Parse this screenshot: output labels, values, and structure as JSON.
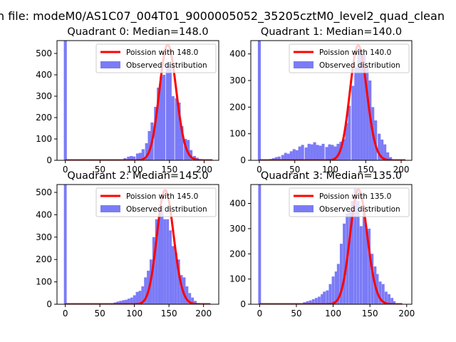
{
  "figure_title": "n file: modeM0/AS1C07_004T01_9000005052_35205cztM0_level2_quad_clean",
  "colors": {
    "histogram": "#7b7bf7",
    "poisson": "#ff0000",
    "axis": "#000000"
  },
  "chart_data": [
    {
      "type": "bar+line",
      "quadrant": 0,
      "title": "Quadrant 0: Median=148.0",
      "median": 148.0,
      "xlim": [
        -12,
        221
      ],
      "ylim": [
        0,
        560
      ],
      "xticks": [
        0,
        50,
        100,
        150,
        200
      ],
      "yticks": [
        0,
        100,
        200,
        300,
        400,
        500
      ],
      "bin_width": 4.3,
      "zero_bin": {
        "x": 0,
        "count": 560
      },
      "bins": [
        [
          86,
          10
        ],
        [
          91,
          17
        ],
        [
          95,
          20
        ],
        [
          99,
          18
        ],
        [
          104,
          32
        ],
        [
          108,
          35
        ],
        [
          112,
          52
        ],
        [
          117,
          80
        ],
        [
          121,
          137
        ],
        [
          125,
          177
        ],
        [
          130,
          250
        ],
        [
          134,
          340
        ],
        [
          138,
          390
        ],
        [
          142,
          400
        ],
        [
          147,
          460
        ],
        [
          151,
          440
        ],
        [
          155,
          300
        ],
        [
          160,
          290
        ],
        [
          164,
          270
        ],
        [
          168,
          160
        ],
        [
          173,
          100
        ],
        [
          177,
          95
        ],
        [
          181,
          48
        ],
        [
          186,
          20
        ],
        [
          190,
          12
        ]
      ],
      "poisson": {
        "mean": 148.0,
        "peak": 540,
        "range": [
          0,
          212
        ]
      },
      "legend": {
        "line_label": "Poission with 148.0",
        "hist_label": "Observed distribution",
        "position": "upper right"
      }
    },
    {
      "type": "bar+line",
      "quadrant": 1,
      "title": "Quadrant 1: Median=140.0",
      "median": 140.0,
      "xlim": [
        -12,
        215
      ],
      "ylim": [
        0,
        450
      ],
      "xticks": [
        0,
        50,
        100,
        150,
        200
      ],
      "yticks": [
        0,
        100,
        200,
        300,
        400
      ],
      "bin_width": 4.1,
      "zero_bin": {
        "x": 0,
        "count": 450
      },
      "bins": [
        [
          16,
          5
        ],
        [
          20,
          8
        ],
        [
          24,
          12
        ],
        [
          28,
          14
        ],
        [
          33,
          20
        ],
        [
          37,
          28
        ],
        [
          41,
          25
        ],
        [
          45,
          34
        ],
        [
          49,
          42
        ],
        [
          53,
          38
        ],
        [
          57,
          52
        ],
        [
          61,
          58
        ],
        [
          66,
          48
        ],
        [
          70,
          62
        ],
        [
          74,
          60
        ],
        [
          78,
          68
        ],
        [
          82,
          58
        ],
        [
          86,
          55
        ],
        [
          90,
          62
        ],
        [
          95,
          50
        ],
        [
          99,
          60
        ],
        [
          103,
          58
        ],
        [
          107,
          52
        ],
        [
          111,
          62
        ],
        [
          115,
          70
        ],
        [
          119,
          80
        ],
        [
          123,
          140
        ],
        [
          127,
          205
        ],
        [
          132,
          280
        ],
        [
          136,
          350
        ],
        [
          140,
          420
        ],
        [
          144,
          410
        ],
        [
          148,
          400
        ],
        [
          152,
          350
        ],
        [
          156,
          300
        ],
        [
          160,
          200
        ],
        [
          164,
          150
        ],
        [
          169,
          100
        ],
        [
          173,
          78
        ],
        [
          177,
          60
        ],
        [
          181,
          30
        ],
        [
          185,
          12
        ]
      ],
      "poisson": {
        "mean": 140.0,
        "peak": 432,
        "range": [
          0,
          206
        ]
      },
      "legend": {
        "line_label": "Poission with 140.0",
        "hist_label": "Observed distribution",
        "position": "upper right"
      }
    },
    {
      "type": "bar+line",
      "quadrant": 2,
      "title": "Quadrant 2: Median=145.0",
      "median": 145.0,
      "xlim": [
        -12,
        222
      ],
      "ylim": [
        0,
        535
      ],
      "xticks": [
        0,
        50,
        100,
        150,
        200
      ],
      "yticks": [
        0,
        100,
        200,
        300,
        400,
        500
      ],
      "bin_width": 4.0,
      "zero_bin": {
        "x": 0,
        "count": 535
      },
      "bins": [
        [
          72,
          8
        ],
        [
          76,
          12
        ],
        [
          80,
          15
        ],
        [
          84,
          18
        ],
        [
          88,
          20
        ],
        [
          92,
          25
        ],
        [
          96,
          30
        ],
        [
          100,
          40
        ],
        [
          104,
          55
        ],
        [
          108,
          60
        ],
        [
          112,
          80
        ],
        [
          116,
          120
        ],
        [
          120,
          150
        ],
        [
          124,
          200
        ],
        [
          128,
          300
        ],
        [
          132,
          380
        ],
        [
          136,
          400
        ],
        [
          140,
          440
        ],
        [
          144,
          380
        ],
        [
          148,
          380
        ],
        [
          152,
          330
        ],
        [
          156,
          260
        ],
        [
          160,
          230
        ],
        [
          164,
          200
        ],
        [
          168,
          130
        ],
        [
          172,
          120
        ],
        [
          176,
          80
        ],
        [
          180,
          50
        ],
        [
          184,
          30
        ],
        [
          188,
          15
        ]
      ],
      "poisson": {
        "mean": 145.0,
        "peak": 510,
        "range": [
          0,
          210
        ]
      },
      "legend": {
        "line_label": "Poission with 145.0",
        "hist_label": "Observed distribution",
        "position": "upper right"
      }
    },
    {
      "type": "bar+line",
      "quadrant": 3,
      "title": "Quadrant 3: Median=135.0",
      "median": 135.0,
      "xlim": [
        -12,
        207
      ],
      "ylim": [
        0,
        475
      ],
      "xticks": [
        0,
        50,
        100,
        150,
        200
      ],
      "yticks": [
        0,
        100,
        200,
        300,
        400
      ],
      "bin_width": 3.8,
      "zero_bin": {
        "x": 0,
        "count": 475
      },
      "bins": [
        [
          61,
          8
        ],
        [
          65,
          12
        ],
        [
          69,
          15
        ],
        [
          73,
          20
        ],
        [
          77,
          25
        ],
        [
          81,
          30
        ],
        [
          85,
          40
        ],
        [
          88,
          50
        ],
        [
          92,
          55
        ],
        [
          96,
          80
        ],
        [
          100,
          110
        ],
        [
          104,
          130
        ],
        [
          107,
          160
        ],
        [
          111,
          240
        ],
        [
          115,
          320
        ],
        [
          119,
          360
        ],
        [
          123,
          370
        ],
        [
          126,
          410
        ],
        [
          130,
          460
        ],
        [
          134,
          410
        ],
        [
          138,
          310
        ],
        [
          142,
          390
        ],
        [
          145,
          300
        ],
        [
          149,
          300
        ],
        [
          153,
          200
        ],
        [
          157,
          150
        ],
        [
          160,
          120
        ],
        [
          164,
          90
        ],
        [
          168,
          80
        ],
        [
          172,
          50
        ],
        [
          176,
          40
        ],
        [
          180,
          25
        ],
        [
          183,
          12
        ]
      ],
      "poisson": {
        "mean": 135.0,
        "peak": 455,
        "range": [
          0,
          194
        ]
      },
      "legend": {
        "line_label": "Poission with 135.0",
        "hist_label": "Observed distribution",
        "position": "upper right"
      }
    }
  ]
}
